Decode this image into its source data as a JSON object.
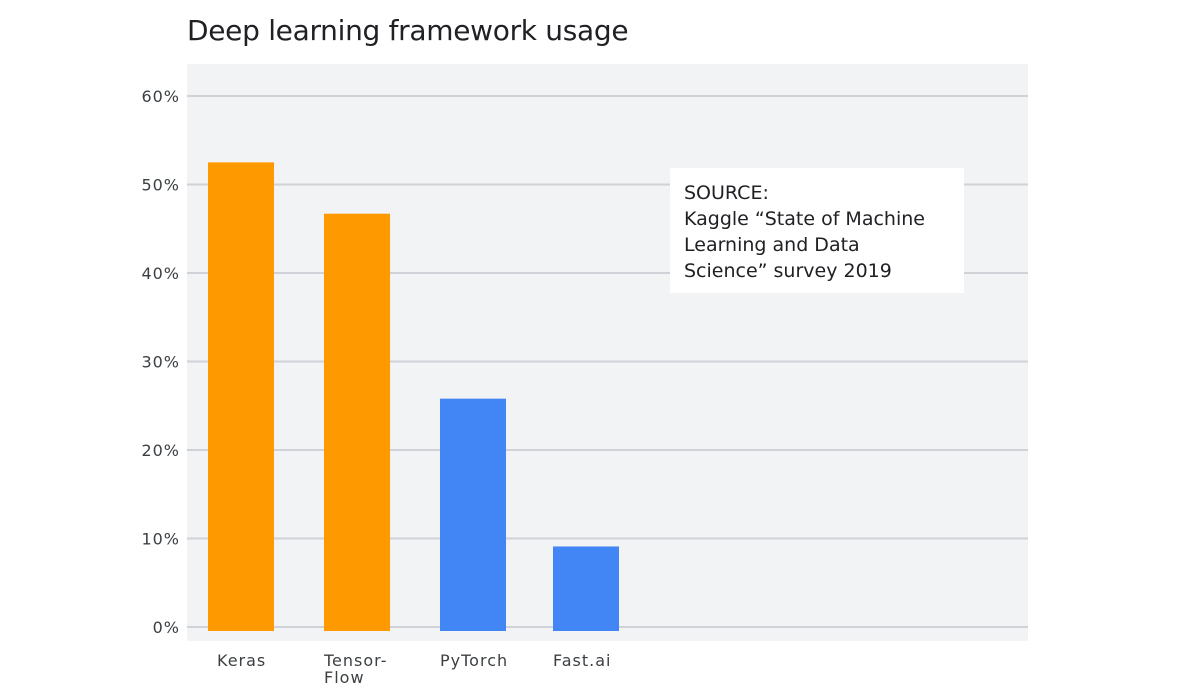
{
  "chart_data": {
    "type": "bar",
    "title": "Deep learning framework usage",
    "categories": [
      "Keras",
      "Tensor-\nFlow",
      "PyTorch",
      "Fast.ai"
    ],
    "values": [
      52.5,
      46.7,
      25.8,
      9.1
    ],
    "unit": "%",
    "bar_colors": [
      "#ff9900",
      "#ff9900",
      "#4285f4",
      "#4285f4"
    ],
    "xlabel": "",
    "ylabel": "",
    "ylim": [
      0,
      60
    ],
    "yticks": [
      0,
      10,
      20,
      30,
      40,
      50,
      60
    ],
    "ytick_labels": [
      "0%",
      "10%",
      "20%",
      "30%",
      "40%",
      "50%",
      "60%"
    ],
    "grid": true,
    "background": "#f1f3f4",
    "annotation": "SOURCE:\nKaggle “State of Machine\nLearning and Data\nScience” survey 2019"
  }
}
